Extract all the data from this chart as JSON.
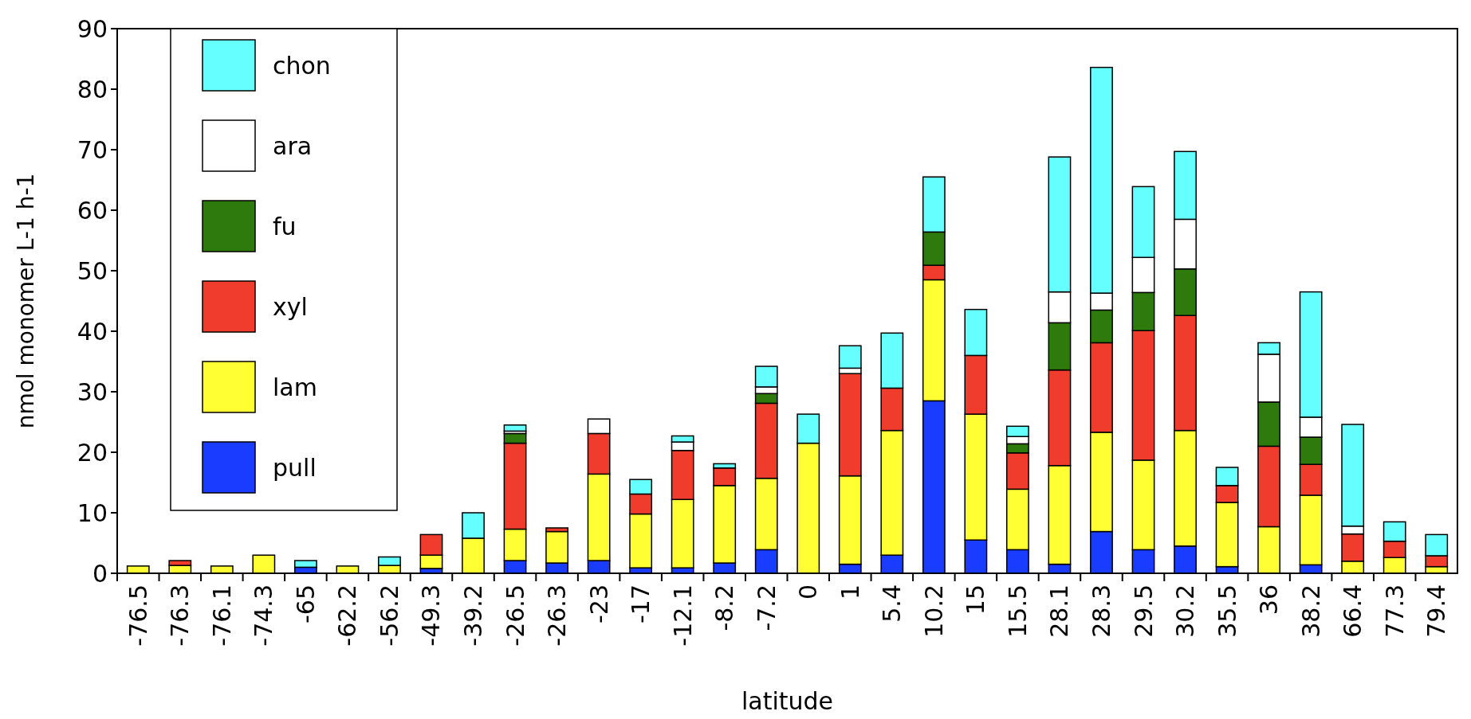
{
  "chart_data": {
    "type": "bar",
    "stacked": true,
    "xlabel": "latitude",
    "ylabel": "nmol monomer L-1 h-1",
    "categories": [
      "-76.5",
      "-76.3",
      "-76.1",
      "-74.3",
      "-65",
      "-62.2",
      "-56.2",
      "-49.3",
      "-39.2",
      "-26.5",
      "-26.3",
      "-23",
      "-17",
      "-12.1",
      "-8.2",
      "-7.2",
      "0",
      "1",
      "5.4",
      "10.2",
      "15",
      "15.5",
      "28.1",
      "28.3",
      "29.5",
      "30.2",
      "35.5",
      "36",
      "38.2",
      "66.4",
      "77.3",
      "79.4"
    ],
    "series": [
      {
        "name": "pull",
        "color": "#1a3cff",
        "values": [
          0,
          0,
          0,
          0,
          1.0,
          0,
          0,
          0.8,
          0,
          2.1,
          1.7,
          2.1,
          0.9,
          0.9,
          1.7,
          3.9,
          0,
          1.5,
          3.0,
          28.5,
          5.5,
          3.9,
          1.5,
          6.9,
          3.9,
          4.5,
          1.1,
          null,
          1.4,
          0,
          0,
          0
        ]
      },
      {
        "name": "lam",
        "color": "#ffff33",
        "values": [
          1.2,
          1.3,
          1.2,
          3.0,
          0,
          1.2,
          1.3,
          2.2,
          5.8,
          5.2,
          5.2,
          14.3,
          8.9,
          11.3,
          12.8,
          11.8,
          21.5,
          14.6,
          20.6,
          20.0,
          20.8,
          10.0,
          16.3,
          16.4,
          14.8,
          19.1,
          10.6,
          7.7,
          11.5,
          2.0,
          2.6,
          1.1
        ]
      },
      {
        "name": "xyl",
        "color": "#f03c2d",
        "values": [
          0,
          0.8,
          0,
          0,
          0,
          0,
          0,
          3.4,
          0,
          14.2,
          0.6,
          6.7,
          3.3,
          8.1,
          2.9,
          12.4,
          0,
          16.9,
          7.0,
          2.4,
          9.7,
          6.0,
          15.8,
          14.8,
          21.4,
          19.0,
          2.8,
          13.3,
          5.1,
          4.5,
          2.7,
          1.8
        ]
      },
      {
        "name": "fu",
        "color": "#2e7a0c",
        "values": [
          0,
          0,
          0,
          0,
          0,
          0,
          0,
          0,
          0,
          1.6,
          0,
          0,
          0,
          0,
          0,
          1.6,
          0,
          0,
          0,
          5.5,
          0,
          1.5,
          7.8,
          5.4,
          6.3,
          7.7,
          0,
          7.3,
          4.5,
          0,
          0,
          0
        ]
      },
      {
        "name": "ara",
        "color": "#ffffff",
        "values": [
          0,
          0,
          0,
          0,
          0,
          0,
          0,
          0,
          0,
          0.4,
          0,
          2.4,
          0,
          1.4,
          0,
          1.1,
          0,
          0.9,
          0,
          0,
          0,
          1.2,
          5.1,
          2.8,
          5.8,
          8.2,
          0,
          7.9,
          3.3,
          1.3,
          0,
          0
        ]
      },
      {
        "name": "chon",
        "color": "#66ffff",
        "values": [
          0,
          0,
          0,
          0,
          1.1,
          0,
          1.4,
          0,
          4.2,
          1.0,
          0,
          0,
          2.4,
          1.0,
          0.7,
          3.4,
          4.8,
          3.7,
          9.1,
          9.1,
          7.6,
          1.7,
          22.3,
          37.3,
          11.7,
          11.2,
          3.0,
          1.9,
          20.7,
          16.8,
          3.2,
          3.5
        ]
      }
    ],
    "ylim": [
      0,
      90
    ],
    "yticks": [
      0,
      10,
      20,
      30,
      40,
      50,
      60,
      70,
      80,
      90
    ],
    "grid": false,
    "legend": "top left"
  }
}
